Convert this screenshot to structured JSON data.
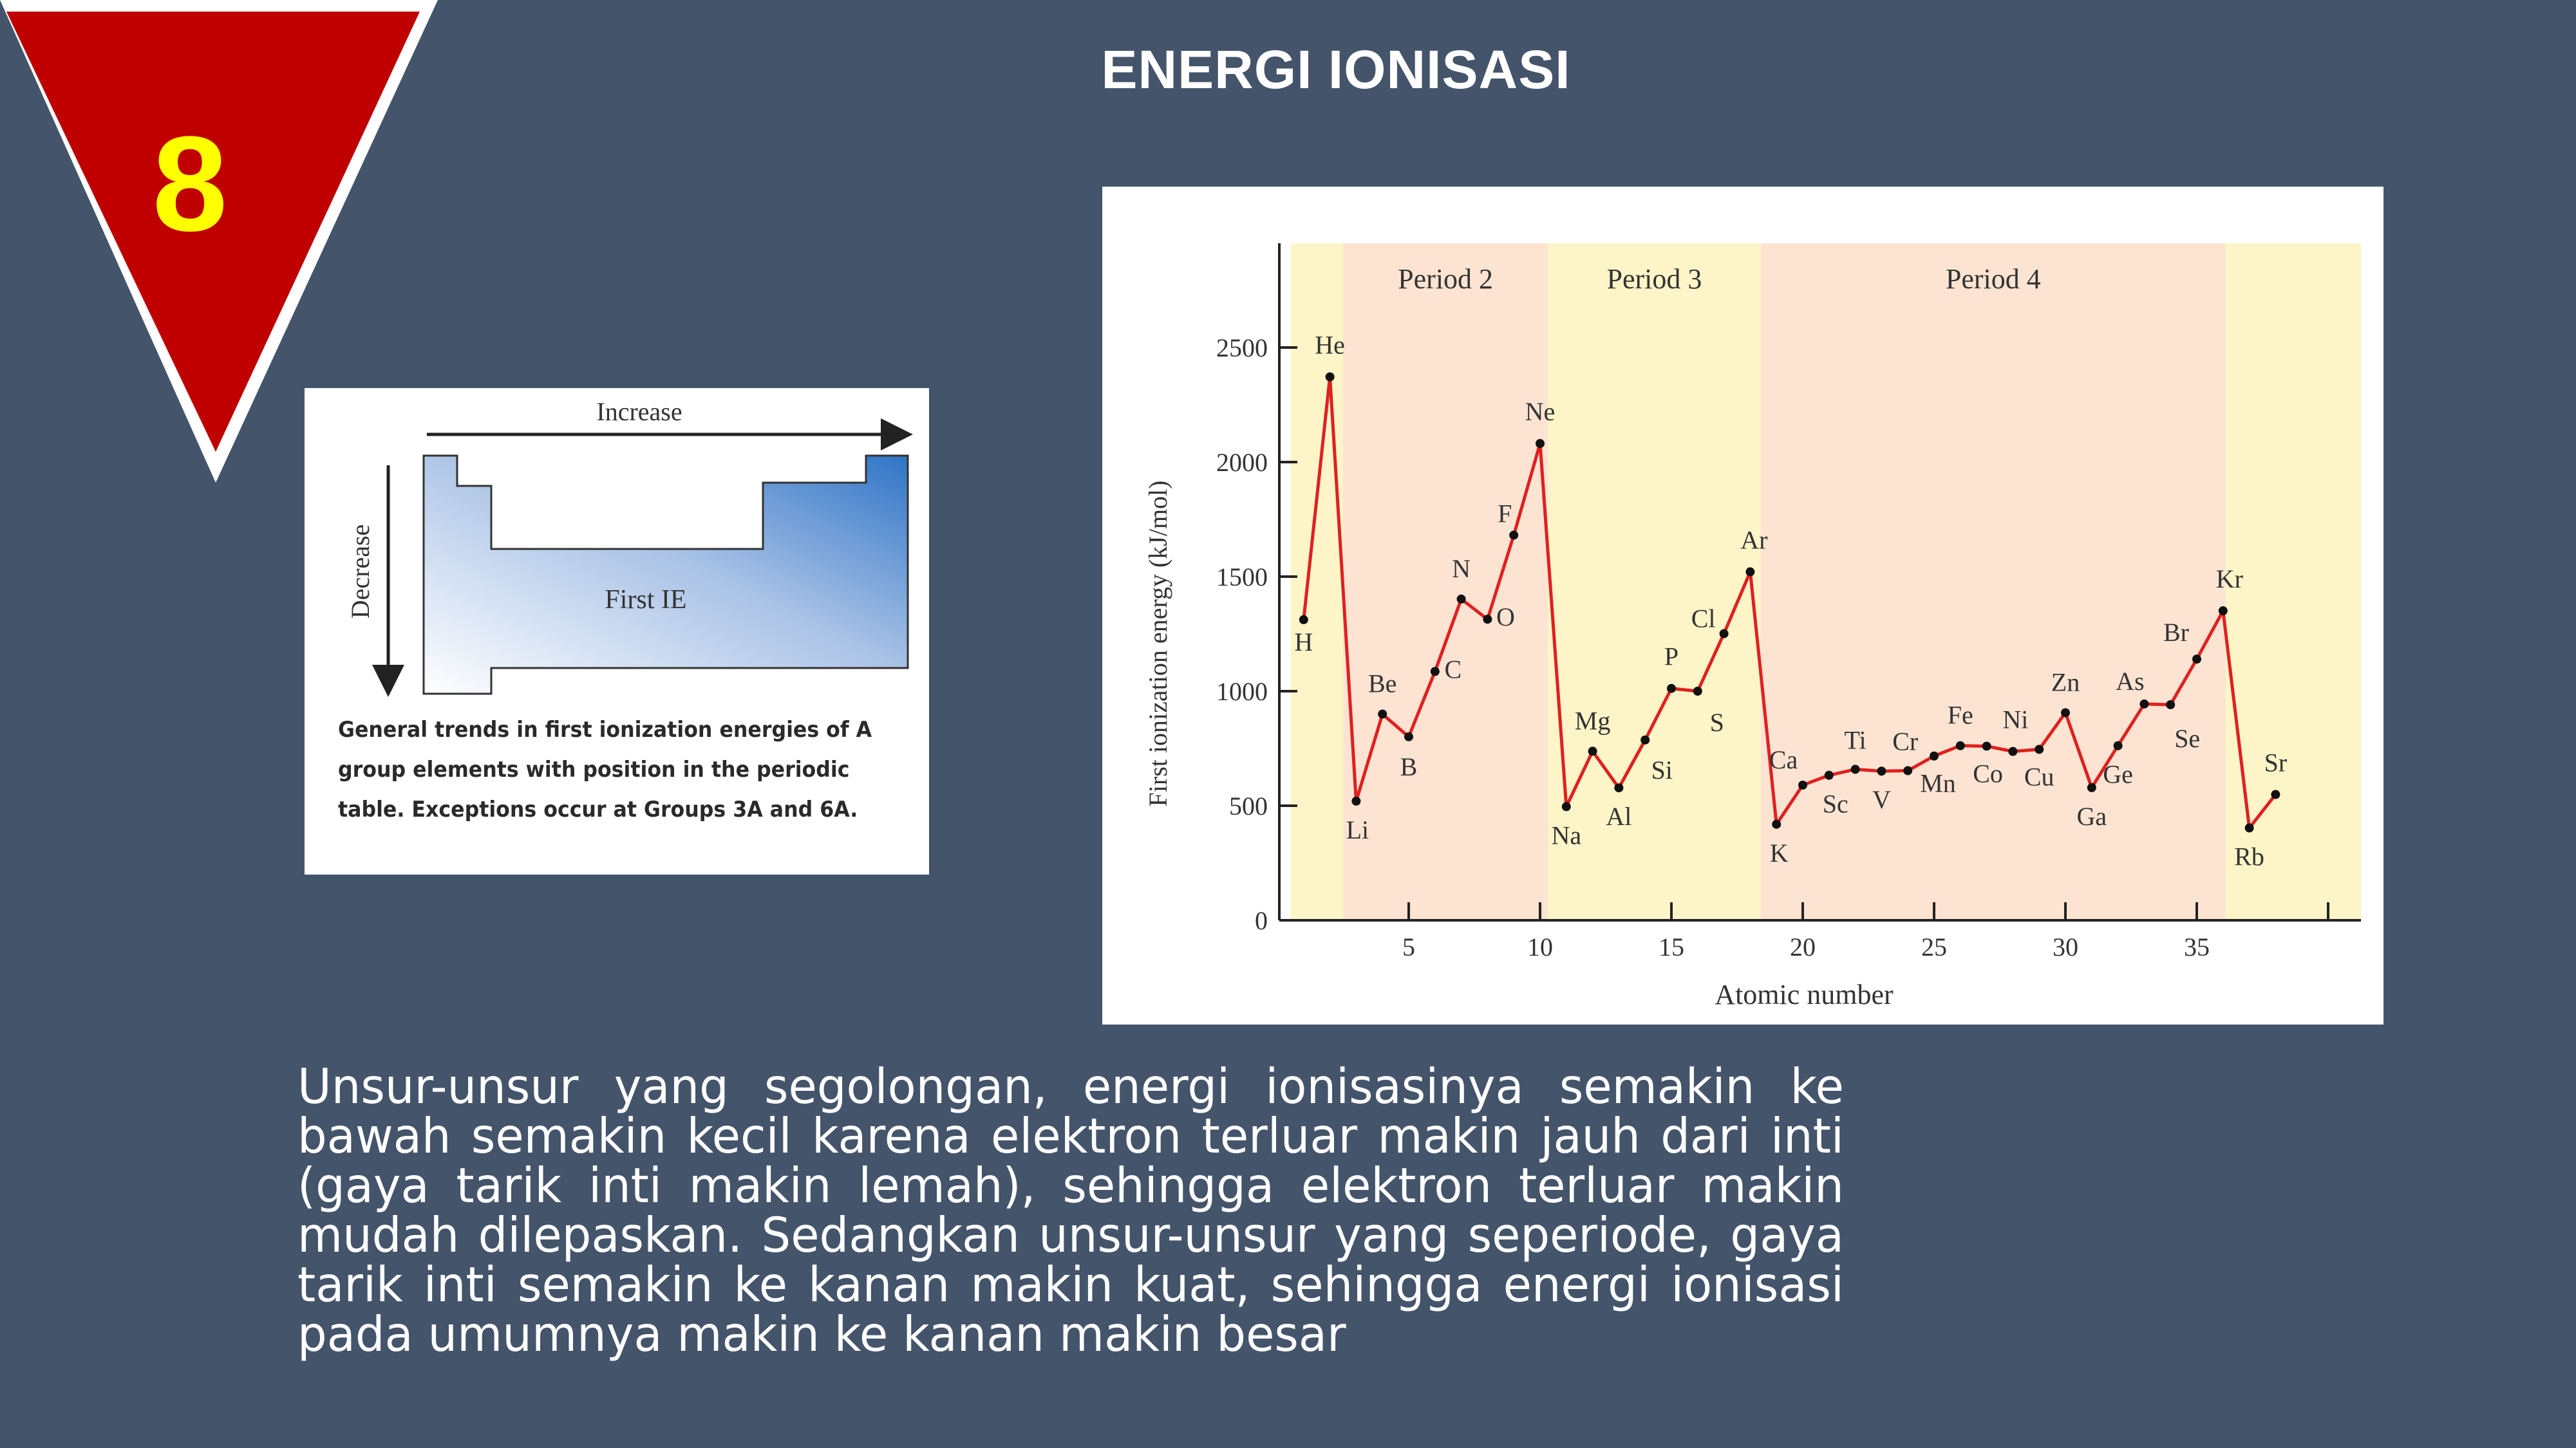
{
  "slide": {
    "number": "8",
    "title": "ENERGI IONISASI",
    "explanation": "Unsur-unsur yang segolongan, energi ionisasinya semakin ke bawah semakin kecil karena elektron terluar makin jauh dari inti (gaya tarik inti makin lemah), sehingga elektron terluar makin mudah dilepaskan. Sedangkan unsur-unsur yang seperiode, gaya tarik inti semakin ke kanan makin kuat, sehingga energi ionisasi pada umumnya makin ke kanan makin besar",
    "colors": {
      "background": "#44546a",
      "badge": "#c00000",
      "badge_number": "#ffff00"
    }
  },
  "trend_diagram": {
    "increase_label": "Increase",
    "decrease_label": "Decrease",
    "center_label": "First IE",
    "caption": "General trends in first ionization energies of A group elements with position in the periodic table. Exceptions occur at Groups 3A and 6A."
  },
  "chart_data": {
    "type": "line",
    "xlabel": "Atomic number",
    "ylabel": "First ionization energy (kJ/mol)",
    "xlim": [
      0,
      40
    ],
    "ylim": [
      0,
      2900
    ],
    "x_ticks": [
      5,
      10,
      15,
      20,
      25,
      30,
      35
    ],
    "y_ticks": [
      0,
      500,
      1000,
      1500,
      2000,
      2500
    ],
    "grid": false,
    "regions": [
      {
        "label": "",
        "from": 0.5,
        "to": 2.5,
        "color": "#fdf5c8"
      },
      {
        "label": "Period 2",
        "from": 2.5,
        "to": 10.3,
        "color": "#fde4d2"
      },
      {
        "label": "Period 3",
        "from": 10.3,
        "to": 18.4,
        "color": "#fdf5c8"
      },
      {
        "label": "Period 4",
        "from": 18.4,
        "to": 36.1,
        "color": "#fde4d2"
      },
      {
        "label": "",
        "from": 36.1,
        "to": 41.5,
        "color": "#fdf5c8"
      }
    ],
    "line_color": "#e02020",
    "x": [
      1,
      2,
      3,
      4,
      5,
      6,
      7,
      8,
      9,
      10,
      11,
      12,
      13,
      14,
      15,
      16,
      17,
      18,
      19,
      20,
      21,
      22,
      23,
      24,
      25,
      26,
      27,
      28,
      29,
      30,
      31,
      32,
      33,
      34,
      35,
      36,
      37,
      38
    ],
    "elements": [
      "H",
      "He",
      "Li",
      "Be",
      "B",
      "C",
      "N",
      "O",
      "F",
      "Ne",
      "Na",
      "Mg",
      "Al",
      "Si",
      "P",
      "S",
      "Cl",
      "Ar",
      "K",
      "Ca",
      "Sc",
      "Ti",
      "V",
      "Cr",
      "Mn",
      "Fe",
      "Co",
      "Ni",
      "Cu",
      "Zn",
      "Ga",
      "Ge",
      "As",
      "Se",
      "Br",
      "Kr",
      "Rb",
      "Sr"
    ],
    "values": [
      1312,
      2372,
      520,
      900,
      801,
      1086,
      1402,
      1314,
      1681,
      2081,
      496,
      738,
      578,
      787,
      1012,
      1000,
      1251,
      1521,
      419,
      590,
      633,
      659,
      651,
      653,
      717,
      762,
      760,
      737,
      746,
      906,
      579,
      762,
      944,
      941,
      1140,
      1351,
      403,
      549
    ]
  }
}
